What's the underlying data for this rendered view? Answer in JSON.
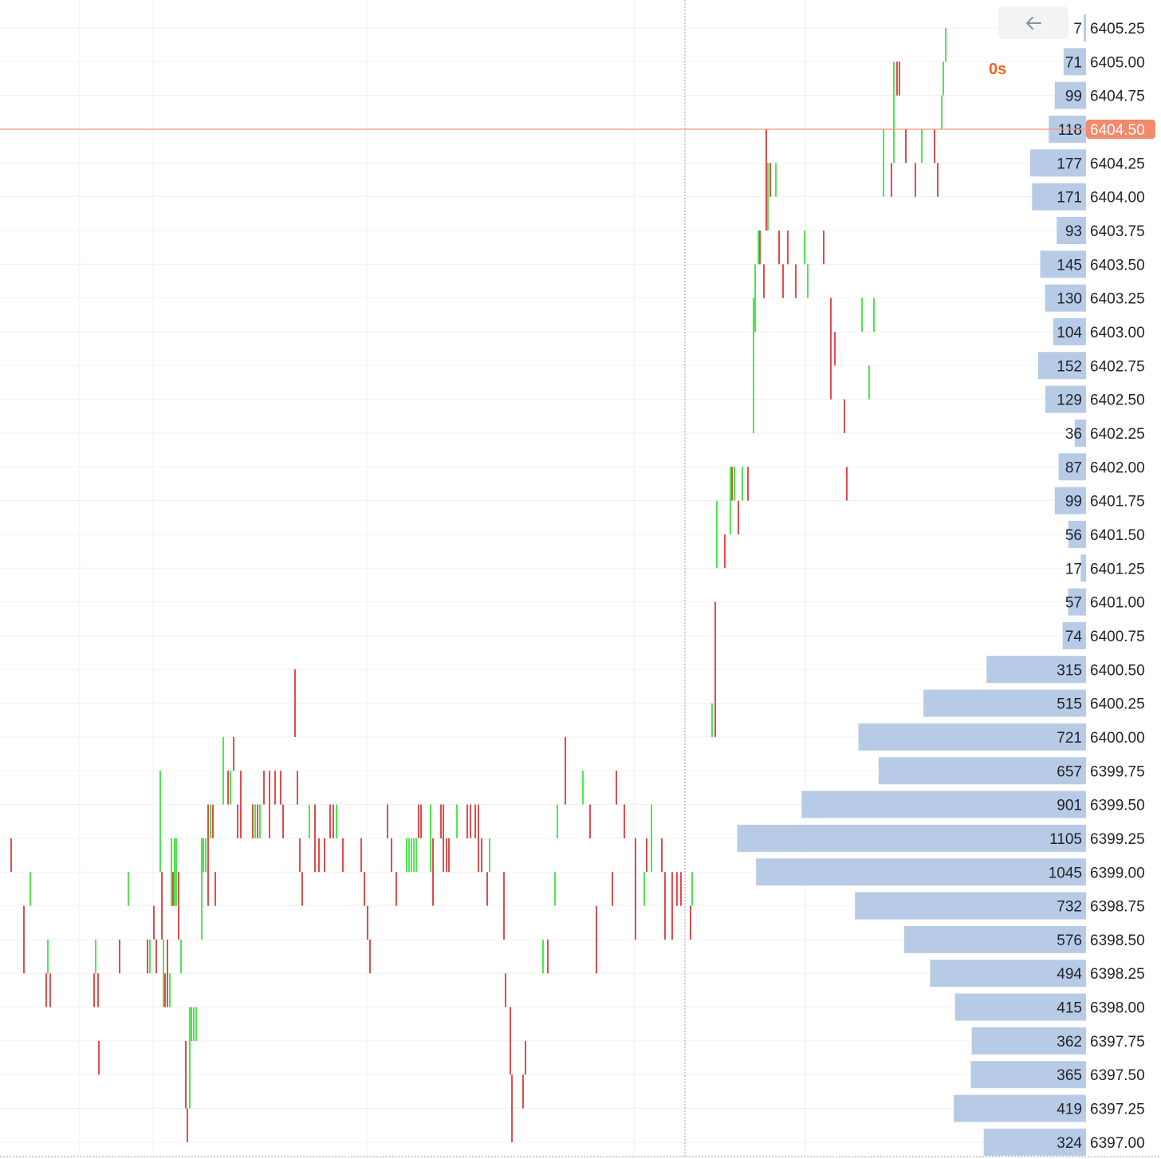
{
  "chart_data": {
    "type": "bar",
    "title": "",
    "subtitle": "",
    "xlabel": "",
    "ylabel": "",
    "price_min": 6397.0,
    "price_max": 6405.25,
    "tick_size": 0.25,
    "current_price": 6404.5,
    "current_price_label": "6404.50",
    "grid": true,
    "volume_profile": {
      "prices": [
        "6405.25",
        "6405.00",
        "6404.75",
        "6404.50",
        "6404.25",
        "6404.00",
        "6403.75",
        "6403.50",
        "6403.25",
        "6403.00",
        "6402.75",
        "6402.50",
        "6402.25",
        "6402.00",
        "6401.75",
        "6401.50",
        "6401.25",
        "6401.00",
        "6400.75",
        "6400.50",
        "6400.25",
        "6400.00",
        "6399.75",
        "6399.50",
        "6399.25",
        "6399.00",
        "6398.75",
        "6398.50",
        "6398.25",
        "6398.00",
        "6397.75",
        "6397.50",
        "6397.25",
        "6397.00"
      ],
      "volumes": [
        7,
        71,
        99,
        118,
        177,
        171,
        93,
        145,
        130,
        104,
        152,
        129,
        36,
        87,
        99,
        56,
        17,
        57,
        74,
        315,
        515,
        721,
        657,
        901,
        1105,
        1045,
        732,
        576,
        494,
        415,
        362,
        365,
        419,
        324
      ]
    },
    "colors": {
      "up": "#1fe31f",
      "down": "#d81f1f",
      "profile_bar": "#b8cbe6",
      "current_line": "#f4977c",
      "current_badge": "#f38a6e",
      "grid": "#f0f1f3",
      "divider": "#9aa0a6"
    }
  },
  "countdown": "0s",
  "back_icon": "arrow-left-icon"
}
